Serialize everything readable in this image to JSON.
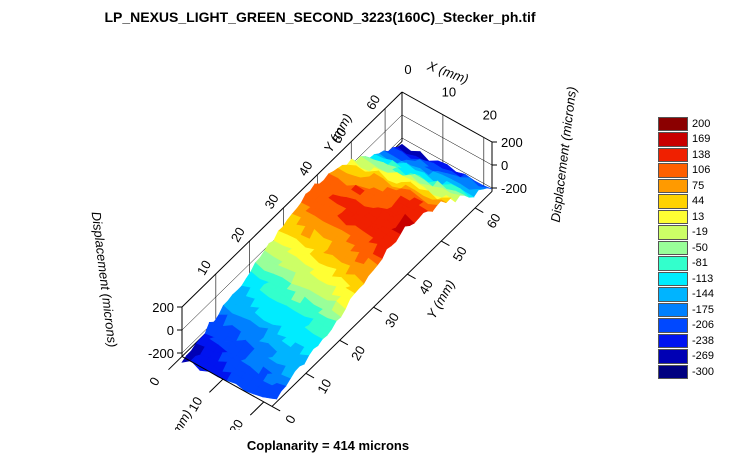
{
  "title": "LP_NEXUS_LIGHT_GREEN_SECOND_3223(160C)_Stecker_ph.tif",
  "footer": "Coplanarity = 414 microns",
  "chart_data": {
    "type": "surface3d",
    "title": "LP_NEXUS_LIGHT_GREEN_SECOND_3223(160C)_Stecker_ph.tif",
    "x_axis": {
      "label": "X (mm)",
      "ticks": [
        "0",
        "10",
        "20"
      ],
      "range": [
        0,
        22
      ]
    },
    "y_axis": {
      "label": "Y (mm)",
      "ticks": [
        "0",
        "10",
        "20",
        "30",
        "40",
        "50",
        "60"
      ],
      "range": [
        0,
        65
      ]
    },
    "z_axis": {
      "label": "Displacement (microns)",
      "ticks": [
        "200",
        "0",
        "-200"
      ],
      "range": [
        -300,
        200
      ]
    },
    "legend": {
      "position": "right",
      "entries": [
        {
          "label": "200",
          "color": "#8b0000"
        },
        {
          "label": "169",
          "color": "#c80000"
        },
        {
          "label": "138",
          "color": "#f02000"
        },
        {
          "label": "106",
          "color": "#ff6000"
        },
        {
          "label": "75",
          "color": "#ff9a00"
        },
        {
          "label": "44",
          "color": "#ffd200"
        },
        {
          "label": "13",
          "color": "#ffff33"
        },
        {
          "label": "-19",
          "color": "#ccff66"
        },
        {
          "label": "-50",
          "color": "#99ff99"
        },
        {
          "label": "-81",
          "color": "#33ffcc"
        },
        {
          "label": "-113",
          "color": "#00ecff"
        },
        {
          "label": "-144",
          "color": "#00b4ff"
        },
        {
          "label": "-175",
          "color": "#0080ff"
        },
        {
          "label": "-206",
          "color": "#0048ff"
        },
        {
          "label": "-238",
          "color": "#0014f0"
        },
        {
          "label": "-269",
          "color": "#0000b4"
        },
        {
          "label": "-300",
          "color": "#000080"
        }
      ]
    },
    "surface_profile": {
      "y_mm": [
        0,
        5,
        10,
        15,
        20,
        25,
        30,
        35,
        40,
        45,
        50,
        55,
        60,
        65
      ],
      "z_microns": [
        -220,
        -185,
        -145,
        -105,
        -55,
        15,
        85,
        135,
        150,
        120,
        65,
        -40,
        -140,
        -230
      ]
    },
    "coplanarity_microns": 414
  }
}
